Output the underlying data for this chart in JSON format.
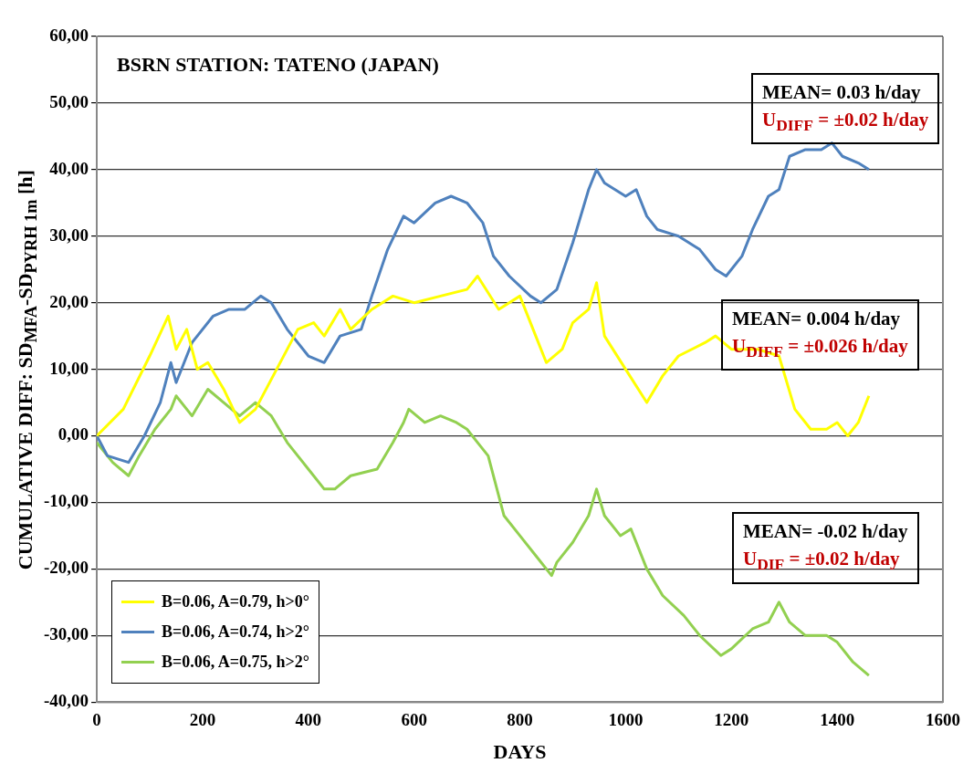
{
  "chart_data": {
    "type": "line",
    "title": "BSRN STATION: TATENO (JAPAN)",
    "xlabel": "DAYS",
    "ylabel": "CUMULATIVE DIFF: SD$_{MFA}$-SD$_{PYRH 1m}$ [h]",
    "xlim": [
      0,
      1600
    ],
    "xticks": [
      0,
      200,
      400,
      600,
      800,
      1000,
      1200,
      1400,
      1600
    ],
    "ylim": [
      -40,
      60
    ],
    "yticks": [
      {
        "value": -40,
        "label": "-40,00"
      },
      {
        "value": -30,
        "label": "-30,00"
      },
      {
        "value": -20,
        "label": "-20,00"
      },
      {
        "value": -10,
        "label": "-10,00"
      },
      {
        "value": 0,
        "label": "0,00"
      },
      {
        "value": 10,
        "label": "10,00"
      },
      {
        "value": 20,
        "label": "20,00"
      },
      {
        "value": 30,
        "label": "30,00"
      },
      {
        "value": 40,
        "label": "40,00"
      },
      {
        "value": 50,
        "label": "50,00"
      },
      {
        "value": 60,
        "label": "60,00"
      }
    ],
    "grid": "y",
    "legend": "bottom left",
    "line_style": "solid",
    "annotations": [
      "MEAN= 0.03 h/day",
      "U$_{DIFF}$ = ±0.02 h/day",
      "MEAN= 0.004 h/day",
      "U$_{DIFF}$ = ±0.026 h/day",
      "MEAN= -0.02 h/day",
      "U$_{DIF}$ = ±0.02 h/day"
    ],
    "series": [
      {
        "name": "B=0.06, A=0.79, h>0°",
        "color": "#ffff00",
        "x": [
          0,
          50,
          100,
          135,
          150,
          170,
          190,
          210,
          240,
          270,
          300,
          340,
          380,
          410,
          430,
          460,
          480,
          520,
          560,
          600,
          650,
          700,
          720,
          760,
          800,
          830,
          850,
          880,
          900,
          930,
          945,
          960,
          1000,
          1040,
          1070,
          1100,
          1150,
          1170,
          1200,
          1250,
          1290,
          1320,
          1350,
          1380,
          1400,
          1420,
          1440,
          1460
        ],
        "values": [
          0,
          4,
          12,
          18,
          13,
          16,
          10,
          11,
          7,
          2,
          4,
          10,
          16,
          17,
          15,
          19,
          16,
          19,
          21,
          20,
          21,
          22,
          24,
          19,
          21,
          15,
          11,
          13,
          17,
          19,
          23,
          15,
          10,
          5,
          9,
          12,
          14,
          15,
          13,
          13,
          12,
          4,
          1,
          1,
          2,
          0,
          2,
          6
        ]
      },
      {
        "name": "B=0.06, A=0.74, h>2°",
        "color": "#4f81bd",
        "x": [
          0,
          20,
          60,
          90,
          120,
          140,
          150,
          180,
          220,
          250,
          280,
          310,
          330,
          360,
          400,
          430,
          460,
          500,
          520,
          550,
          580,
          600,
          640,
          670,
          700,
          730,
          750,
          780,
          820,
          840,
          870,
          900,
          930,
          945,
          960,
          1000,
          1020,
          1040,
          1060,
          1100,
          1140,
          1170,
          1190,
          1220,
          1240,
          1270,
          1290,
          1310,
          1340,
          1370,
          1390,
          1410,
          1440,
          1460
        ],
        "values": [
          0,
          -3,
          -4,
          0,
          5,
          11,
          8,
          14,
          18,
          19,
          19,
          21,
          20,
          16,
          12,
          11,
          15,
          16,
          21,
          28,
          33,
          32,
          35,
          36,
          35,
          32,
          27,
          24,
          21,
          20,
          22,
          29,
          37,
          40,
          38,
          36,
          37,
          33,
          31,
          30,
          28,
          25,
          24,
          27,
          31,
          36,
          37,
          42,
          43,
          43,
          44,
          42,
          41,
          40
        ]
      },
      {
        "name": "B=0.06, A=0.75, h>2°",
        "color": "#92d050",
        "x": [
          0,
          30,
          60,
          80,
          110,
          140,
          150,
          180,
          210,
          240,
          270,
          300,
          330,
          360,
          400,
          430,
          450,
          480,
          530,
          560,
          580,
          590,
          620,
          650,
          680,
          700,
          720,
          740,
          770,
          800,
          830,
          860,
          870,
          900,
          930,
          945,
          960,
          990,
          1010,
          1040,
          1070,
          1110,
          1140,
          1180,
          1200,
          1240,
          1270,
          1290,
          1310,
          1340,
          1380,
          1400,
          1430,
          1460
        ],
        "values": [
          -1,
          -4,
          -6,
          -3,
          1,
          4,
          6,
          3,
          7,
          5,
          3,
          5,
          3,
          -1,
          -5,
          -8,
          -8,
          -6,
          -5,
          -1,
          2,
          4,
          2,
          3,
          2,
          1,
          -1,
          -3,
          -12,
          -15,
          -18,
          -21,
          -19,
          -16,
          -12,
          -8,
          -12,
          -15,
          -14,
          -20,
          -24,
          -27,
          -30,
          -33,
          -32,
          -29,
          -28,
          -25,
          -28,
          -30,
          -30,
          -31,
          -34,
          -36
        ]
      }
    ]
  }
}
